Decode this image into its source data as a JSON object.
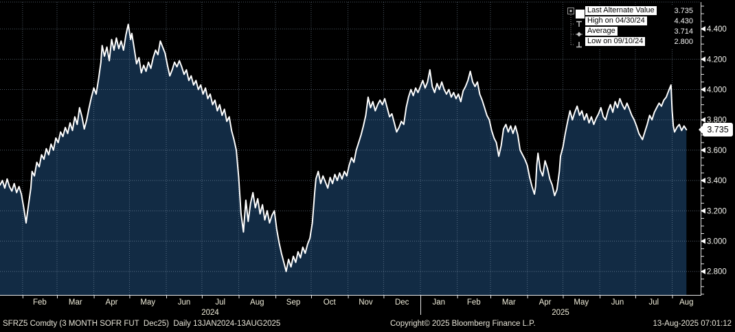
{
  "legend": {
    "rows": [
      {
        "label": "Last Alternate Value",
        "value": "3.735",
        "marker": "swatch"
      },
      {
        "label": "High on 04/30/24",
        "value": "4.430",
        "marker": "high"
      },
      {
        "label": "Average",
        "value": "3.714",
        "marker": "average"
      },
      {
        "label": "Low on 09/10/24",
        "value": "2.800",
        "marker": "low"
      }
    ]
  },
  "axis_tag": {
    "value": "3.735"
  },
  "statusbar": {
    "left": "SFRZ5 Comdty (3 MONTH SOFR FUT  Dec25)  Daily 13JAN2024-13AUG2025",
    "center": "Copyright© 2025 Bloomberg Finance L.P.",
    "right": "13-Aug-2025 07:01:12"
  },
  "colors": {
    "background": "#000000",
    "area_fill": "#122b44",
    "line": "#ffffff",
    "grid": "#8ea3b8",
    "axis": "#e9e9e9",
    "month_label_text": "#f0edda",
    "y_label_text": "#f4f4ef",
    "legend_highlight_bg": "#ffffff",
    "legend_highlight_text": "#000000",
    "tag_bg": "#ffffff",
    "tag_text": "#000000"
  },
  "chart_data": {
    "type": "area",
    "security": "SFRZ5 Comdty",
    "description": "3 MONTH SOFR FUT Dec25",
    "frequency": "Daily",
    "date_range": "13JAN2024-13AUG2025",
    "last_value": 3.735,
    "high": {
      "value": 4.43,
      "date": "04/30/24"
    },
    "average": 3.714,
    "low": {
      "value": 2.8,
      "date": "09/10/24"
    },
    "ylim": [
      2.645,
      4.577
    ],
    "y_ticks": [
      4.4,
      4.2,
      4.0,
      3.8,
      3.6,
      3.4,
      3.2,
      3.0,
      2.8
    ],
    "y_tick_labels": [
      "4.400",
      "4.200",
      "4.000",
      "3.800",
      "3.600",
      "3.400",
      "3.200",
      "3.000",
      "2.800"
    ],
    "y_minor_step": 0.05,
    "t_range": [
      0,
      590
    ],
    "month_boundaries_t": [
      19,
      48,
      79,
      109,
      140,
      170,
      201,
      232,
      262,
      293,
      323,
      354,
      385,
      413,
      444,
      474,
      505,
      535,
      566
    ],
    "month_labels": [
      "Feb",
      "Mar",
      "Apr",
      "May",
      "Jun",
      "Jul",
      "Aug",
      "Sep",
      "Oct",
      "Nov",
      "Dec",
      "Jan",
      "Feb",
      "Mar",
      "Apr",
      "May",
      "Jun",
      "Jul",
      "Aug"
    ],
    "year_labels": [
      {
        "t": 177,
        "label": "2024"
      },
      {
        "t": 472,
        "label": "2025"
      }
    ],
    "year_separator_t": 354,
    "series": [
      {
        "name": "Last Alternate Value",
        "points": [
          [
            0,
            3.37
          ],
          [
            2,
            3.4
          ],
          [
            4,
            3.35
          ],
          [
            6,
            3.41
          ],
          [
            8,
            3.36
          ],
          [
            10,
            3.33
          ],
          [
            12,
            3.38
          ],
          [
            14,
            3.32
          ],
          [
            16,
            3.36
          ],
          [
            18,
            3.31
          ],
          [
            20,
            3.22
          ],
          [
            22,
            3.12
          ],
          [
            24,
            3.24
          ],
          [
            26,
            3.35
          ],
          [
            27,
            3.46
          ],
          [
            29,
            3.43
          ],
          [
            31,
            3.52
          ],
          [
            33,
            3.49
          ],
          [
            35,
            3.57
          ],
          [
            37,
            3.54
          ],
          [
            39,
            3.61
          ],
          [
            41,
            3.57
          ],
          [
            43,
            3.64
          ],
          [
            45,
            3.6
          ],
          [
            47,
            3.68
          ],
          [
            49,
            3.65
          ],
          [
            51,
            3.72
          ],
          [
            53,
            3.69
          ],
          [
            55,
            3.75
          ],
          [
            57,
            3.71
          ],
          [
            59,
            3.78
          ],
          [
            61,
            3.73
          ],
          [
            63,
            3.82
          ],
          [
            65,
            3.77
          ],
          [
            67,
            3.88
          ],
          [
            69,
            3.82
          ],
          [
            71,
            3.74
          ],
          [
            73,
            3.8
          ],
          [
            75,
            3.88
          ],
          [
            77,
            3.95
          ],
          [
            79,
            4.01
          ],
          [
            81,
            3.97
          ],
          [
            83,
            4.07
          ],
          [
            85,
            4.18
          ],
          [
            86,
            4.29
          ],
          [
            88,
            4.22
          ],
          [
            90,
            4.28
          ],
          [
            92,
            4.19
          ],
          [
            94,
            4.33
          ],
          [
            96,
            4.26
          ],
          [
            98,
            4.34
          ],
          [
            100,
            4.27
          ],
          [
            102,
            4.32
          ],
          [
            104,
            4.26
          ],
          [
            106,
            4.36
          ],
          [
            108,
            4.43
          ],
          [
            110,
            4.33
          ],
          [
            111,
            4.37
          ],
          [
            113,
            4.27
          ],
          [
            115,
            4.17
          ],
          [
            117,
            4.21
          ],
          [
            119,
            4.11
          ],
          [
            121,
            4.16
          ],
          [
            123,
            4.12
          ],
          [
            125,
            4.18
          ],
          [
            127,
            4.14
          ],
          [
            129,
            4.21
          ],
          [
            131,
            4.26
          ],
          [
            133,
            4.23
          ],
          [
            135,
            4.32
          ],
          [
            137,
            4.28
          ],
          [
            139,
            4.24
          ],
          [
            141,
            4.16
          ],
          [
            143,
            4.09
          ],
          [
            145,
            4.13
          ],
          [
            147,
            4.18
          ],
          [
            149,
            4.15
          ],
          [
            151,
            4.19
          ],
          [
            153,
            4.15
          ],
          [
            155,
            4.1
          ],
          [
            157,
            4.13
          ],
          [
            159,
            4.06
          ],
          [
            161,
            4.09
          ],
          [
            163,
            4.03
          ],
          [
            165,
            4.06
          ],
          [
            167,
            4.0
          ],
          [
            169,
            4.03
          ],
          [
            171,
            3.97
          ],
          [
            173,
            4.01
          ],
          [
            175,
            3.94
          ],
          [
            177,
            3.97
          ],
          [
            179,
            3.9
          ],
          [
            181,
            3.93
          ],
          [
            183,
            3.86
          ],
          [
            185,
            3.9
          ],
          [
            187,
            3.83
          ],
          [
            189,
            3.87
          ],
          [
            191,
            3.79
          ],
          [
            193,
            3.82
          ],
          [
            195,
            3.73
          ],
          [
            197,
            3.67
          ],
          [
            199,
            3.6
          ],
          [
            201,
            3.42
          ],
          [
            203,
            3.18
          ],
          [
            205,
            3.06
          ],
          [
            207,
            3.27
          ],
          [
            209,
            3.13
          ],
          [
            211,
            3.25
          ],
          [
            213,
            3.32
          ],
          [
            215,
            3.22
          ],
          [
            217,
            3.28
          ],
          [
            219,
            3.18
          ],
          [
            221,
            3.24
          ],
          [
            223,
            3.14
          ],
          [
            225,
            3.2
          ],
          [
            227,
            3.12
          ],
          [
            229,
            3.17
          ],
          [
            231,
            3.2
          ],
          [
            233,
            3.08
          ],
          [
            235,
            2.99
          ],
          [
            237,
            2.92
          ],
          [
            239,
            2.86
          ],
          [
            241,
            2.8
          ],
          [
            243,
            2.88
          ],
          [
            245,
            2.83
          ],
          [
            247,
            2.9
          ],
          [
            249,
            2.86
          ],
          [
            251,
            2.93
          ],
          [
            253,
            2.89
          ],
          [
            255,
            2.96
          ],
          [
            257,
            2.92
          ],
          [
            259,
            2.98
          ],
          [
            261,
            3.02
          ],
          [
            263,
            3.12
          ],
          [
            265,
            3.32
          ],
          [
            266,
            3.41
          ],
          [
            268,
            3.46
          ],
          [
            270,
            3.38
          ],
          [
            272,
            3.43
          ],
          [
            274,
            3.39
          ],
          [
            276,
            3.35
          ],
          [
            278,
            3.42
          ],
          [
            280,
            3.38
          ],
          [
            282,
            3.44
          ],
          [
            284,
            3.4
          ],
          [
            286,
            3.45
          ],
          [
            288,
            3.41
          ],
          [
            290,
            3.46
          ],
          [
            292,
            3.43
          ],
          [
            294,
            3.5
          ],
          [
            296,
            3.55
          ],
          [
            298,
            3.52
          ],
          [
            300,
            3.6
          ],
          [
            302,
            3.65
          ],
          [
            304,
            3.7
          ],
          [
            306,
            3.76
          ],
          [
            308,
            3.83
          ],
          [
            310,
            3.95
          ],
          [
            312,
            3.88
          ],
          [
            314,
            3.92
          ],
          [
            316,
            3.86
          ],
          [
            318,
            3.9
          ],
          [
            320,
            3.93
          ],
          [
            322,
            3.9
          ],
          [
            324,
            3.94
          ],
          [
            326,
            3.88
          ],
          [
            328,
            3.82
          ],
          [
            330,
            3.84
          ],
          [
            332,
            3.78
          ],
          [
            334,
            3.72
          ],
          [
            336,
            3.75
          ],
          [
            338,
            3.79
          ],
          [
            340,
            3.77
          ],
          [
            342,
            3.88
          ],
          [
            344,
            3.95
          ],
          [
            346,
            4.0
          ],
          [
            348,
            3.96
          ],
          [
            350,
            4.01
          ],
          [
            352,
            3.98
          ],
          [
            354,
            4.02
          ],
          [
            356,
            4.06
          ],
          [
            358,
            4.01
          ],
          [
            360,
            4.05
          ],
          [
            362,
            4.13
          ],
          [
            364,
            4.02
          ],
          [
            366,
            3.98
          ],
          [
            368,
            4.04
          ],
          [
            370,
            4.0
          ],
          [
            372,
            4.05
          ],
          [
            374,
            4.0
          ],
          [
            376,
            3.97
          ],
          [
            378,
            4.0
          ],
          [
            380,
            3.95
          ],
          [
            382,
            3.98
          ],
          [
            384,
            3.94
          ],
          [
            386,
            3.97
          ],
          [
            388,
            3.92
          ],
          [
            390,
            3.99
          ],
          [
            392,
            4.02
          ],
          [
            394,
            4.06
          ],
          [
            396,
            4.12
          ],
          [
            398,
            4.05
          ],
          [
            400,
            4.02
          ],
          [
            402,
            4.05
          ],
          [
            404,
            3.97
          ],
          [
            406,
            3.93
          ],
          [
            408,
            3.88
          ],
          [
            410,
            3.83
          ],
          [
            412,
            3.8
          ],
          [
            414,
            3.73
          ],
          [
            416,
            3.68
          ],
          [
            418,
            3.65
          ],
          [
            420,
            3.56
          ],
          [
            422,
            3.63
          ],
          [
            424,
            3.74
          ],
          [
            426,
            3.77
          ],
          [
            428,
            3.72
          ],
          [
            430,
            3.76
          ],
          [
            432,
            3.71
          ],
          [
            434,
            3.76
          ],
          [
            436,
            3.7
          ],
          [
            438,
            3.6
          ],
          [
            440,
            3.57
          ],
          [
            442,
            3.54
          ],
          [
            444,
            3.5
          ],
          [
            446,
            3.42
          ],
          [
            448,
            3.36
          ],
          [
            450,
            3.31
          ],
          [
            451,
            3.36
          ],
          [
            452,
            3.5
          ],
          [
            453,
            3.58
          ],
          [
            455,
            3.47
          ],
          [
            457,
            3.43
          ],
          [
            459,
            3.53
          ],
          [
            461,
            3.48
          ],
          [
            463,
            3.41
          ],
          [
            465,
            3.37
          ],
          [
            467,
            3.3
          ],
          [
            469,
            3.34
          ],
          [
            471,
            3.46
          ],
          [
            472,
            3.56
          ],
          [
            474,
            3.62
          ],
          [
            476,
            3.71
          ],
          [
            478,
            3.79
          ],
          [
            480,
            3.86
          ],
          [
            482,
            3.8
          ],
          [
            484,
            3.85
          ],
          [
            486,
            3.89
          ],
          [
            488,
            3.83
          ],
          [
            490,
            3.86
          ],
          [
            492,
            3.8
          ],
          [
            494,
            3.84
          ],
          [
            496,
            3.78
          ],
          [
            498,
            3.82
          ],
          [
            500,
            3.77
          ],
          [
            502,
            3.81
          ],
          [
            504,
            3.84
          ],
          [
            506,
            3.88
          ],
          [
            508,
            3.82
          ],
          [
            510,
            3.8
          ],
          [
            512,
            3.86
          ],
          [
            514,
            3.9
          ],
          [
            516,
            3.85
          ],
          [
            518,
            3.92
          ],
          [
            520,
            3.88
          ],
          [
            522,
            3.94
          ],
          [
            524,
            3.9
          ],
          [
            526,
            3.87
          ],
          [
            528,
            3.91
          ],
          [
            530,
            3.87
          ],
          [
            532,
            3.83
          ],
          [
            534,
            3.8
          ],
          [
            536,
            3.76
          ],
          [
            538,
            3.71
          ],
          [
            541,
            3.67
          ],
          [
            543,
            3.72
          ],
          [
            545,
            3.77
          ],
          [
            547,
            3.83
          ],
          [
            549,
            3.8
          ],
          [
            551,
            3.85
          ],
          [
            553,
            3.88
          ],
          [
            555,
            3.91
          ],
          [
            557,
            3.89
          ],
          [
            559,
            3.93
          ],
          [
            561,
            3.95
          ],
          [
            563,
            3.99
          ],
          [
            565,
            4.03
          ],
          [
            566,
            3.86
          ],
          [
            567,
            3.76
          ],
          [
            568,
            3.72
          ],
          [
            570,
            3.75
          ],
          [
            572,
            3.77
          ],
          [
            574,
            3.73
          ],
          [
            576,
            3.76
          ],
          [
            578,
            3.735
          ]
        ]
      }
    ]
  }
}
